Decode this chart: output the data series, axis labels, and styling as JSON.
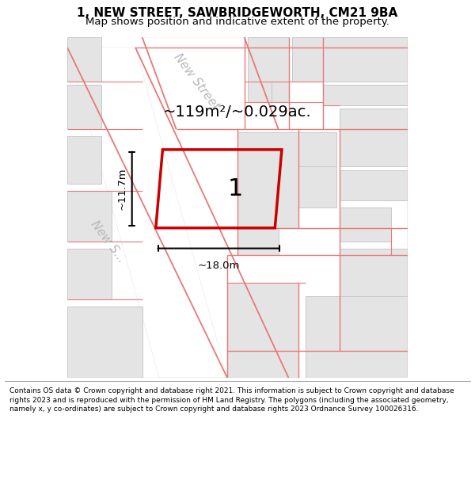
{
  "title": "1, NEW STREET, SAWBRIDGEWORTH, CM21 9BA",
  "subtitle": "Map shows position and indicative extent of the property.",
  "footer": "Contains OS data © Crown copyright and database right 2021. This information is subject to Crown copyright and database rights 2023 and is reproduced with the permission of HM Land Registry. The polygons (including the associated geometry, namely x, y co-ordinates) are subject to Crown copyright and database rights 2023 Ordnance Survey 100026316.",
  "area_label": "~119m²/~0.029ac.",
  "property_label": "1",
  "dim_width": "~18.0m",
  "dim_height": "~11.7m",
  "street_label_top": "New Street",
  "street_label_left": "New S...",
  "map_bg": "#f0f0f0",
  "building_fill": "#e4e4e4",
  "building_edge": "#c8c8c8",
  "road_fill": "#ffffff",
  "cadastral_color": "#e87878",
  "property_edge_color": "#cc0000",
  "title_fontsize": 11,
  "subtitle_fontsize": 9.5,
  "footer_fontsize": 6.5
}
